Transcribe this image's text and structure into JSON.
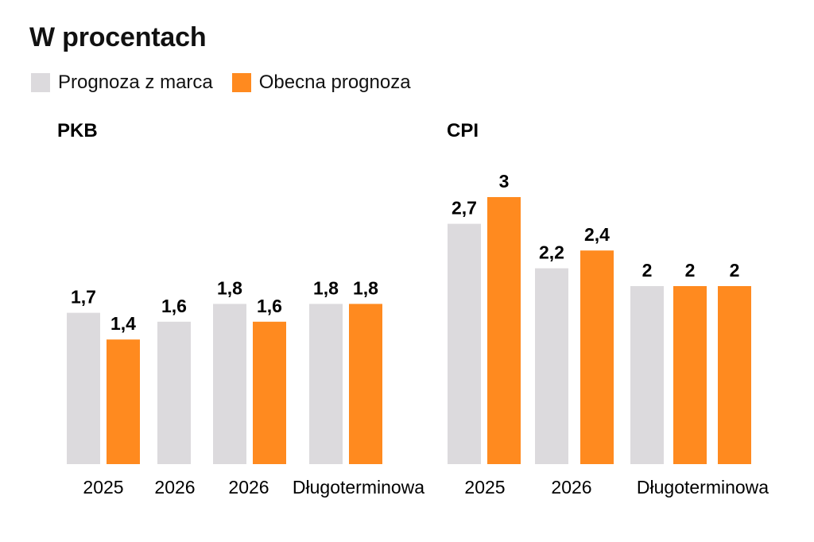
{
  "title": "W procentach",
  "colors": {
    "prev": "#dcdadd",
    "curr": "#ff8a1f"
  },
  "legend": [
    {
      "label": "Prognoza z marca",
      "color": "#dcdadd"
    },
    {
      "label": "Obecna prognoza",
      "color": "#ff8a1f"
    }
  ],
  "chart_data": [
    {
      "type": "bar",
      "title": "PKB",
      "categories": [
        "2025",
        "2026",
        "2026",
        "Długoterminowa"
      ],
      "series": [
        {
          "name": "Prognoza z marca",
          "values": [
            1.7,
            1.6,
            1.8,
            1.8
          ],
          "labels": [
            "1,7",
            "1,6",
            "1,8",
            "1,8"
          ]
        },
        {
          "name": "Obecna prognoza",
          "values": [
            1.4,
            null,
            1.6,
            1.8
          ],
          "labels": [
            "1,4",
            null,
            "1,6",
            "1,8"
          ]
        }
      ],
      "ylim": [
        0,
        3.2
      ],
      "grid": false,
      "legend": "top-left"
    },
    {
      "type": "bar",
      "title": "CPI",
      "categories": [
        "2025",
        "2026",
        "Długoterminowa"
      ],
      "series": [
        {
          "name": "Prognoza z marca",
          "values": [
            2.7,
            2.2,
            2
          ],
          "labels": [
            "2,7",
            "2,2",
            "2"
          ]
        },
        {
          "name": "Obecna prognoza",
          "values": [
            3,
            2.4,
            2
          ],
          "labels": [
            "3",
            "2,4",
            "2"
          ]
        },
        {
          "name": "Obecna prognoza",
          "values": [
            null,
            null,
            2
          ],
          "labels": [
            null,
            null,
            "2"
          ]
        }
      ],
      "ylim": [
        0,
        3.2
      ],
      "grid": false,
      "legend": "top-left"
    }
  ]
}
